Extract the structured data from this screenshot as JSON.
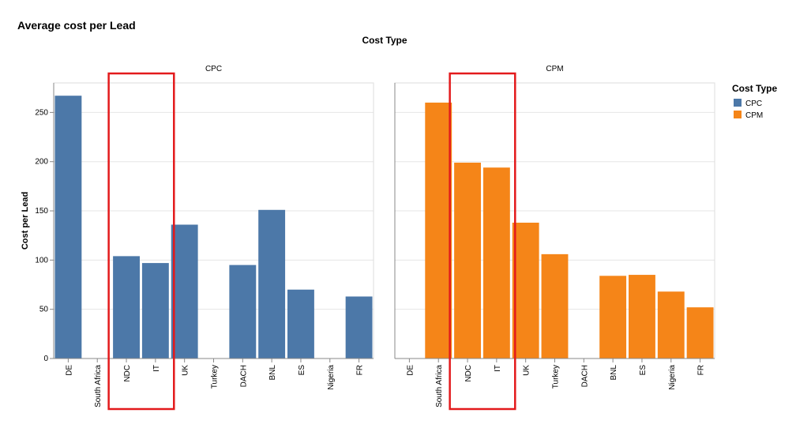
{
  "page_title": "Average cost per Lead",
  "chart_data": {
    "type": "bar",
    "title": "Average cost per Lead",
    "facet_header": "Cost Type",
    "ylabel": "Cost per Lead",
    "ylim": [
      0,
      280
    ],
    "yticks": [
      0,
      50,
      100,
      150,
      200,
      250
    ],
    "grid": true,
    "legend": {
      "title": "Cost Type",
      "position": "right"
    },
    "categories": [
      "DE",
      "South Africa",
      "NDC",
      "IT",
      "UK",
      "Turkey",
      "DACH",
      "BNL",
      "ES",
      "Nigeria",
      "FR"
    ],
    "series": [
      {
        "name": "CPC",
        "color": "#4c78a8",
        "values": [
          267,
          null,
          104,
          97,
          136,
          null,
          95,
          151,
          70,
          null,
          63
        ]
      },
      {
        "name": "CPM",
        "color": "#f58518",
        "values": [
          null,
          260,
          199,
          194,
          138,
          106,
          null,
          84,
          85,
          68,
          52
        ]
      }
    ],
    "highlight": {
      "categories": [
        "NDC",
        "IT"
      ],
      "color": "#e31a1c"
    }
  }
}
